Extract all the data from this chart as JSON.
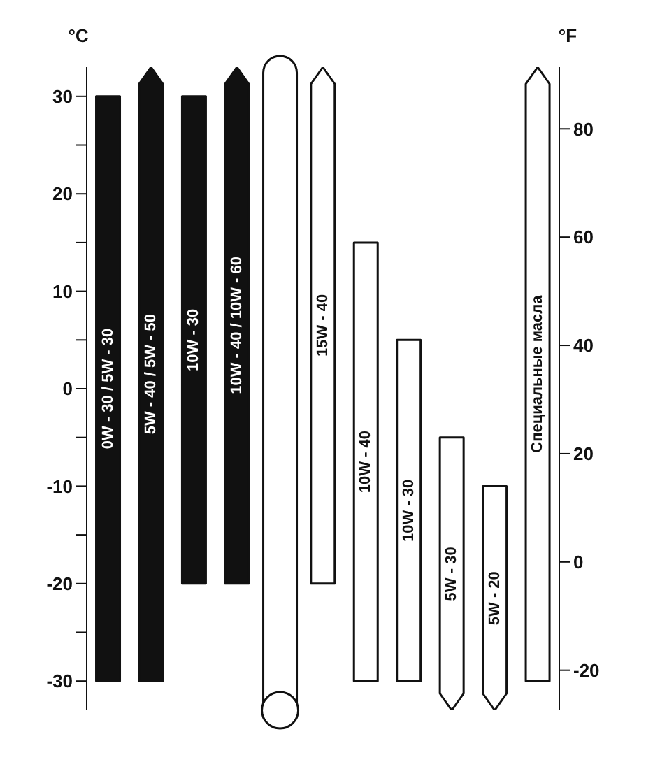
{
  "chart_data": {
    "type": "bar",
    "xlabel": null,
    "ylabel": "°C",
    "y2label": "°F",
    "categories": [
      "0W - 30 / 5W - 30",
      "5W - 40 / 5W - 50",
      "10W - 30",
      "10W - 40 / 10W - 60",
      null,
      "15W - 40",
      "10W - 40",
      "10W - 30",
      "5W - 30",
      "5W - 20",
      "Специальные масла"
    ],
    "base": [
      -30,
      -30,
      -20,
      -20,
      null,
      -20,
      -30,
      -30,
      -33,
      -33,
      -30
    ],
    "values": [
      60,
      63,
      50,
      53,
      null,
      53,
      45,
      35,
      28,
      23,
      63
    ],
    "colors": [
      "#111111",
      "#111111",
      "#111111",
      "#111111",
      null,
      "#ffffff",
      "#ffffff",
      "#ffffff",
      "#ffffff",
      "#ffffff",
      "#ffffff"
    ],
    "ylim": [
      -33,
      33
    ],
    "yticks": [
      -30,
      {
        "value": -25,
        "label": null
      },
      -20,
      {
        "value": -15,
        "label": null
      },
      -10,
      {
        "value": -5,
        "label": null
      },
      0,
      {
        "value": 5,
        "label": null
      },
      10,
      {
        "value": 15,
        "label": null
      },
      20,
      {
        "value": 25,
        "label": null
      },
      30
    ],
    "y2lim": [
      -27.4,
      91.4
    ],
    "y2ticks": [
      -20,
      0,
      20,
      40,
      60,
      80
    ],
    "grid": false,
    "legend": false
  }
}
